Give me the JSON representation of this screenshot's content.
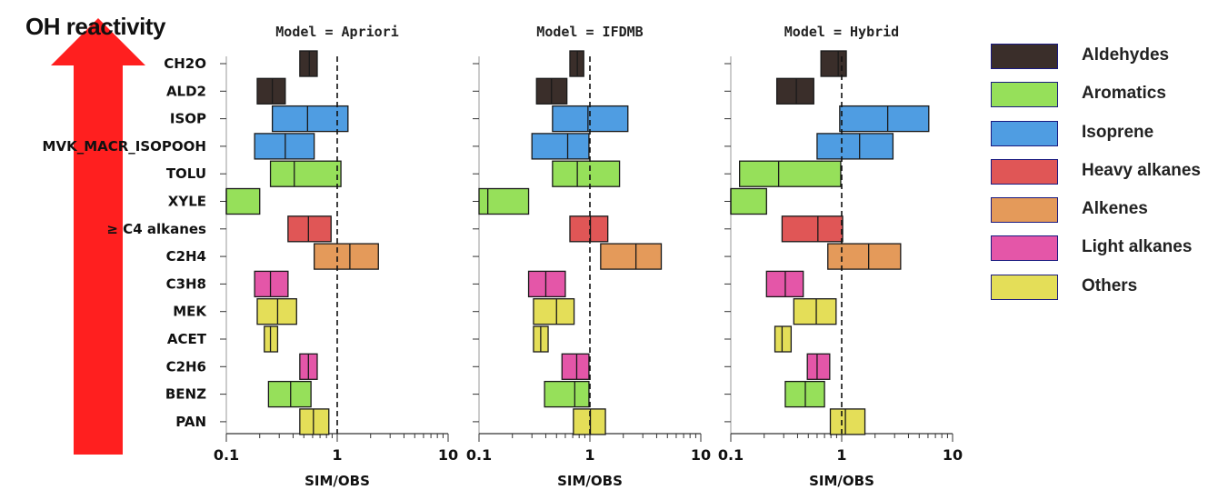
{
  "header": {
    "oh_label": "OH reactivity"
  },
  "legend": [
    {
      "label": "Aldehydes",
      "color": "#3a2e2a"
    },
    {
      "label": "Aromatics",
      "color": "#96e05a"
    },
    {
      "label": "Isoprene",
      "color": "#4f9de2"
    },
    {
      "label": "Heavy alkanes",
      "color": "#e05656"
    },
    {
      "label": "Alkenes",
      "color": "#e49a5a"
    },
    {
      "label": "Light alkanes",
      "color": "#e456a8"
    },
    {
      "label": "Others",
      "color": "#e4de58"
    }
  ],
  "chart_data": {
    "type": "box",
    "species": [
      "CH2O",
      "ALD2",
      "ISOP",
      "MVK_MACR_ISOPOOH",
      "TOLU",
      "XYLE",
      "≥ C4 alkanes",
      "C2H4",
      "C3H8",
      "MEK",
      "ACET",
      "C2H6",
      "BENZ",
      "PAN"
    ],
    "species_group": [
      "Aldehydes",
      "Aldehydes",
      "Isoprene",
      "Isoprene",
      "Aromatics",
      "Aromatics",
      "Heavy alkanes",
      "Alkenes",
      "Light alkanes",
      "Others",
      "Others",
      "Light alkanes",
      "Aromatics",
      "Others"
    ],
    "xlabel": "SIM/OBS",
    "xscale": "log",
    "xlim": [
      0.1,
      10
    ],
    "xticks": [
      0.1,
      1,
      10
    ],
    "xtick_labels": [
      "0.1",
      "1",
      "10"
    ],
    "reference_line": 1,
    "panels": [
      {
        "title": "Model = Apriori",
        "boxes": [
          [
            0.46,
            0.56,
            0.66
          ],
          [
            0.19,
            0.26,
            0.34
          ],
          [
            0.26,
            0.54,
            1.25
          ],
          [
            0.18,
            0.34,
            0.62
          ],
          [
            0.25,
            0.41,
            1.08
          ],
          [
            0.1,
            0.1,
            0.2
          ],
          [
            0.36,
            0.55,
            0.88
          ],
          [
            0.62,
            1.3,
            2.35
          ],
          [
            0.18,
            0.25,
            0.36
          ],
          [
            0.19,
            0.29,
            0.43
          ],
          [
            0.22,
            0.25,
            0.29
          ],
          [
            0.46,
            0.55,
            0.66
          ],
          [
            0.24,
            0.38,
            0.58
          ],
          [
            0.46,
            0.61,
            0.84
          ]
        ]
      },
      {
        "title": "Model = IFDMB",
        "boxes": [
          [
            0.66,
            0.77,
            0.88
          ],
          [
            0.33,
            0.45,
            0.62
          ],
          [
            0.46,
            0.96,
            2.2
          ],
          [
            0.3,
            0.63,
            0.98
          ],
          [
            0.46,
            0.77,
            1.85
          ],
          [
            0.1,
            0.12,
            0.28
          ],
          [
            0.66,
            1.01,
            1.45
          ],
          [
            1.25,
            2.6,
            4.4
          ],
          [
            0.28,
            0.4,
            0.6
          ],
          [
            0.31,
            0.5,
            0.72
          ],
          [
            0.31,
            0.36,
            0.42
          ],
          [
            0.56,
            0.76,
            0.98
          ],
          [
            0.39,
            0.73,
            0.98
          ],
          [
            0.71,
            1.01,
            1.38
          ]
        ]
      },
      {
        "title": "Model = Hybrid",
        "boxes": [
          [
            0.65,
            0.93,
            1.1
          ],
          [
            0.26,
            0.39,
            0.56
          ],
          [
            0.96,
            2.6,
            6.1
          ],
          [
            0.6,
            1.45,
            2.9
          ],
          [
            0.12,
            0.27,
            0.98
          ],
          [
            0.1,
            0.1,
            0.21
          ],
          [
            0.29,
            0.61,
            1.02
          ],
          [
            0.75,
            1.75,
            3.4
          ],
          [
            0.21,
            0.31,
            0.45
          ],
          [
            0.37,
            0.59,
            0.89
          ],
          [
            0.25,
            0.29,
            0.35
          ],
          [
            0.49,
            0.6,
            0.78
          ],
          [
            0.31,
            0.47,
            0.7
          ],
          [
            0.79,
            1.08,
            1.62
          ]
        ]
      }
    ]
  }
}
